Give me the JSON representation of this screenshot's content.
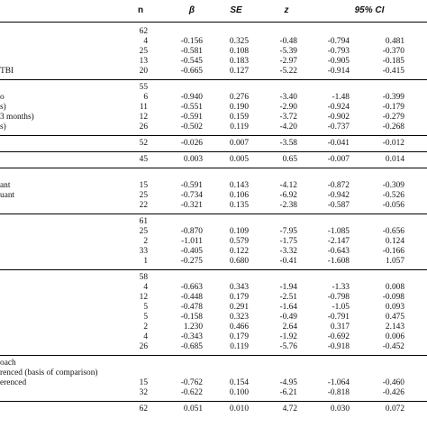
{
  "header": {
    "n": "n",
    "beta": "β",
    "se": "SE",
    "z": "z",
    "ci": "95% CI"
  },
  "groups": [
    {
      "rows": [
        {
          "label": "",
          "n": "62",
          "beta": "",
          "se": "",
          "z": "",
          "lo": "",
          "hi": ""
        },
        {
          "label": "",
          "n": "4",
          "beta": "-0.156",
          "se": "0.325",
          "z": "-0.48",
          "lo": "-0.794",
          "hi": "0.481"
        },
        {
          "label": "",
          "n": "25",
          "beta": "-0.581",
          "se": "0.108",
          "z": "-5.39",
          "lo": "-0.793",
          "hi": "-0.370"
        },
        {
          "label": "",
          "n": "13",
          "beta": "-0.545",
          "se": "0.183",
          "z": "-2.97",
          "lo": "-0.905",
          "hi": "-0.185"
        },
        {
          "label": "TBI",
          "n": "20",
          "beta": "-0.665",
          "se": "0.127",
          "z": "-5.22",
          "lo": "-0.914",
          "hi": "-0.415"
        }
      ]
    },
    {
      "rows": [
        {
          "label": "",
          "n": "55",
          "beta": "",
          "se": "",
          "z": "",
          "lo": "",
          "hi": ""
        },
        {
          "label": "o",
          "n": "6",
          "beta": "-0.940",
          "se": "0.276",
          "z": "-3.40",
          "lo": "-1.48",
          "hi": "-0.399"
        },
        {
          "label": "s)",
          "n": "11",
          "beta": "-0.551",
          "se": "0.190",
          "z": "-2.90",
          "lo": "-0.924",
          "hi": "-0.179"
        },
        {
          "label": "3 months)",
          "n": "12",
          "beta": "-0.591",
          "se": "0.159",
          "z": "-3.72",
          "lo": "-0.902",
          "hi": "-0.279"
        },
        {
          "label": "s)",
          "n": "26",
          "beta": "-0.502",
          "se": "0.119",
          "z": "-4.20",
          "lo": "-0.737",
          "hi": "-0.268"
        }
      ]
    },
    {
      "rows": [
        {
          "label": "",
          "n": "52",
          "beta": "-0.026",
          "se": "0.007",
          "z": "-3.58",
          "lo": "-0.041",
          "hi": "-0.012"
        }
      ]
    },
    {
      "rows": [
        {
          "label": "",
          "n": "45",
          "beta": "0.003",
          "se": "0.005",
          "z": "0.65",
          "lo": "-0.007",
          "hi": "0.014"
        }
      ]
    },
    {
      "rows": [
        {
          "label": "",
          "n": "",
          "beta": "",
          "se": "",
          "z": "",
          "lo": "",
          "hi": ""
        },
        {
          "label": "ant",
          "n": "15",
          "beta": "-0.591",
          "se": "0.143",
          "z": "-4.12",
          "lo": "-0.872",
          "hi": "-0.309"
        },
        {
          "label": "uant",
          "n": "25",
          "beta": "-0.734",
          "se": "0.106",
          "z": "-6.92",
          "lo": "-0.942",
          "hi": "-0.526"
        },
        {
          "label": "",
          "n": "22",
          "beta": "-0.321",
          "se": "0.135",
          "z": "-2.38",
          "lo": "-0.587",
          "hi": "-0.056"
        }
      ]
    },
    {
      "rows": [
        {
          "label": "",
          "n": "61",
          "beta": "",
          "se": "",
          "z": "",
          "lo": "",
          "hi": ""
        },
        {
          "label": "",
          "n": "25",
          "beta": "-0.870",
          "se": "0.109",
          "z": "-7.95",
          "lo": "-1.085",
          "hi": "-0.656"
        },
        {
          "label": "",
          "n": "2",
          "beta": "-1.011",
          "se": "0.579",
          "z": "-1.75",
          "lo": "-2.147",
          "hi": "0.124"
        },
        {
          "label": "",
          "n": "33",
          "beta": "-0.405",
          "se": "0.122",
          "z": "-3.32",
          "lo": "-0.643",
          "hi": "-0.166"
        },
        {
          "label": "",
          "n": "1",
          "beta": "-0.275",
          "se": "0.680",
          "z": "-0.41",
          "lo": "-1.608",
          "hi": "1.057"
        }
      ]
    },
    {
      "rows": [
        {
          "label": "",
          "n": "58",
          "beta": "",
          "se": "",
          "z": "",
          "lo": "",
          "hi": ""
        },
        {
          "label": "",
          "n": "4",
          "beta": "-0.663",
          "se": "0.343",
          "z": "-1.94",
          "lo": "-1.33",
          "hi": "0.008"
        },
        {
          "label": "",
          "n": "12",
          "beta": "-0.448",
          "se": "0.179",
          "z": "-2.51",
          "lo": "-0.798",
          "hi": "-0.098"
        },
        {
          "label": "",
          "n": "5",
          "beta": "-0.478",
          "se": "0.291",
          "z": "-1.64",
          "lo": "-1.05",
          "hi": "0.093"
        },
        {
          "label": "",
          "n": "5",
          "beta": "-0.158",
          "se": "0.323",
          "z": "-0.49",
          "lo": "-0.791",
          "hi": "0.475"
        },
        {
          "label": "",
          "n": "2",
          "beta": "1.230",
          "se": "0.466",
          "z": "2.64",
          "lo": "0.317",
          "hi": "2.143"
        },
        {
          "label": "",
          "n": "4",
          "beta": "-0.343",
          "se": "0.179",
          "z": "-1.92",
          "lo": "-0.692",
          "hi": "0.006"
        },
        {
          "label": "",
          "n": "26",
          "beta": "-0.685",
          "se": "0.119",
          "z": "-5.76",
          "lo": "-0.918",
          "hi": "-0.452"
        }
      ]
    },
    {
      "rows": [
        {
          "label": "oach",
          "n": "",
          "beta": "",
          "se": "",
          "z": "",
          "lo": "",
          "hi": ""
        },
        {
          "label": "renced (basis of comparison)",
          "n": "",
          "beta": "",
          "se": "",
          "z": "",
          "lo": "",
          "hi": ""
        },
        {
          "label": "erenced",
          "n": "15",
          "beta": "-0.762",
          "se": "0.154",
          "z": "-4.95",
          "lo": "-1.064",
          "hi": "-0.460"
        },
        {
          "label": "",
          "n": "32",
          "beta": "-0.622",
          "se": "0.100",
          "z": "-6.21",
          "lo": "-0.818",
          "hi": "-0.426"
        }
      ]
    },
    {
      "rows": [
        {
          "label": "",
          "n": "62",
          "beta": "0.051",
          "se": "0.010",
          "z": "4.72",
          "lo": "0.030",
          "hi": "0.072"
        }
      ]
    }
  ]
}
